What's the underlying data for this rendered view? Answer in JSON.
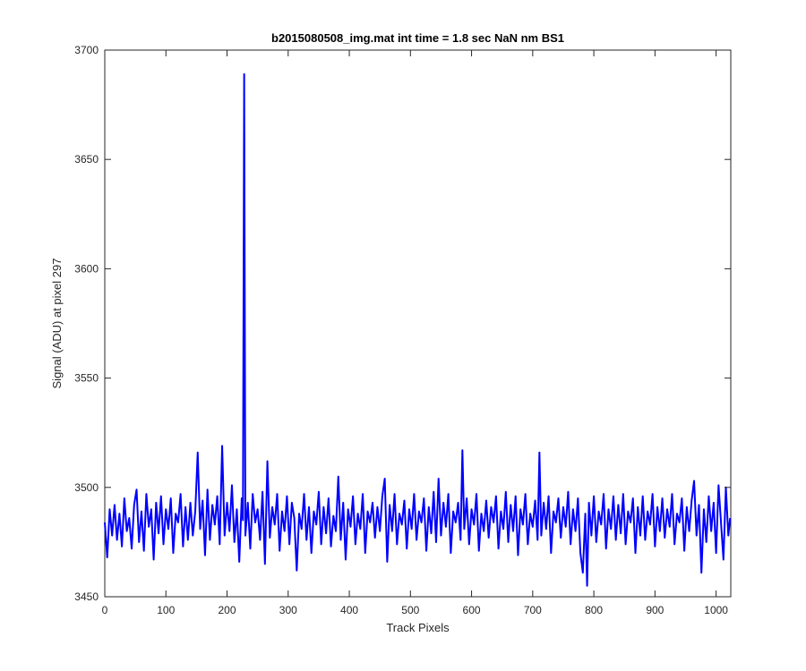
{
  "chart_data": {
    "type": "line",
    "title": "b2015080508_img.mat int time = 1.8 sec  NaN nm BS1",
    "xlabel": "Track Pixels",
    "ylabel": "Signal (ADU) at pixel 297",
    "xlim": [
      0,
      1024
    ],
    "ylim": [
      3450,
      3700
    ],
    "xticks": [
      0,
      100,
      200,
      300,
      400,
      500,
      600,
      700,
      800,
      900,
      1000
    ],
    "yticks": [
      3450,
      3500,
      3550,
      3600,
      3650,
      3700
    ],
    "grid": false,
    "legend": "none",
    "series": [
      {
        "color": "#0000ff",
        "points": [
          [
            0,
            3484
          ],
          [
            4,
            3468
          ],
          [
            8,
            3490
          ],
          [
            12,
            3478
          ],
          [
            16,
            3492
          ],
          [
            20,
            3476
          ],
          [
            24,
            3488
          ],
          [
            28,
            3473
          ],
          [
            32,
            3495
          ],
          [
            36,
            3480
          ],
          [
            40,
            3486
          ],
          [
            44,
            3472
          ],
          [
            48,
            3492
          ],
          [
            52,
            3499
          ],
          [
            56,
            3475
          ],
          [
            60,
            3489
          ],
          [
            64,
            3471
          ],
          [
            68,
            3497
          ],
          [
            72,
            3482
          ],
          [
            76,
            3490
          ],
          [
            80,
            3467
          ],
          [
            84,
            3493
          ],
          [
            88,
            3479
          ],
          [
            92,
            3496
          ],
          [
            96,
            3474
          ],
          [
            100,
            3490
          ],
          [
            104,
            3481
          ],
          [
            108,
            3495
          ],
          [
            112,
            3470
          ],
          [
            116,
            3488
          ],
          [
            120,
            3484
          ],
          [
            124,
            3497
          ],
          [
            128,
            3473
          ],
          [
            132,
            3491
          ],
          [
            136,
            3476
          ],
          [
            140,
            3493
          ],
          [
            144,
            3478
          ],
          [
            148,
            3489
          ],
          [
            152,
            3516
          ],
          [
            156,
            3481
          ],
          [
            160,
            3494
          ],
          [
            164,
            3469
          ],
          [
            168,
            3499
          ],
          [
            172,
            3476
          ],
          [
            176,
            3492
          ],
          [
            180,
            3483
          ],
          [
            184,
            3496
          ],
          [
            188,
            3474
          ],
          [
            192,
            3519
          ],
          [
            196,
            3478
          ],
          [
            200,
            3493
          ],
          [
            204,
            3480
          ],
          [
            208,
            3501
          ],
          [
            212,
            3475
          ],
          [
            216,
            3490
          ],
          [
            220,
            3466
          ],
          [
            224,
            3495
          ],
          [
            226,
            3485
          ],
          [
            228,
            3689
          ],
          [
            230,
            3478
          ],
          [
            234,
            3493
          ],
          [
            238,
            3472
          ],
          [
            242,
            3497
          ],
          [
            246,
            3484
          ],
          [
            250,
            3490
          ],
          [
            254,
            3476
          ],
          [
            258,
            3498
          ],
          [
            262,
            3465
          ],
          [
            266,
            3512
          ],
          [
            270,
            3477
          ],
          [
            274,
            3491
          ],
          [
            278,
            3483
          ],
          [
            282,
            3497
          ],
          [
            286,
            3471
          ],
          [
            290,
            3489
          ],
          [
            294,
            3480
          ],
          [
            298,
            3496
          ],
          [
            302,
            3474
          ],
          [
            306,
            3493
          ],
          [
            310,
            3486
          ],
          [
            314,
            3462
          ],
          [
            318,
            3488
          ],
          [
            322,
            3481
          ],
          [
            326,
            3497
          ],
          [
            330,
            3476
          ],
          [
            334,
            3491
          ],
          [
            338,
            3470
          ],
          [
            342,
            3489
          ],
          [
            346,
            3483
          ],
          [
            350,
            3498
          ],
          [
            354,
            3474
          ],
          [
            358,
            3491
          ],
          [
            362,
            3479
          ],
          [
            366,
            3495
          ],
          [
            370,
            3473
          ],
          [
            374,
            3487
          ],
          [
            378,
            3480
          ],
          [
            382,
            3505
          ],
          [
            386,
            3476
          ],
          [
            390,
            3493
          ],
          [
            394,
            3467
          ],
          [
            398,
            3490
          ],
          [
            402,
            3482
          ],
          [
            406,
            3496
          ],
          [
            410,
            3474
          ],
          [
            414,
            3488
          ],
          [
            418,
            3481
          ],
          [
            422,
            3497
          ],
          [
            426,
            3470
          ],
          [
            430,
            3489
          ],
          [
            434,
            3484
          ],
          [
            438,
            3493
          ],
          [
            442,
            3477
          ],
          [
            446,
            3491
          ],
          [
            450,
            3480
          ],
          [
            454,
            3496
          ],
          [
            458,
            3504
          ],
          [
            462,
            3466
          ],
          [
            466,
            3492
          ],
          [
            470,
            3480
          ],
          [
            474,
            3497
          ],
          [
            478,
            3474
          ],
          [
            482,
            3488
          ],
          [
            486,
            3483
          ],
          [
            490,
            3494
          ],
          [
            494,
            3472
          ],
          [
            498,
            3490
          ],
          [
            502,
            3481
          ],
          [
            506,
            3497
          ],
          [
            510,
            3476
          ],
          [
            514,
            3489
          ],
          [
            518,
            3484
          ],
          [
            522,
            3495
          ],
          [
            526,
            3471
          ],
          [
            530,
            3491
          ],
          [
            534,
            3479
          ],
          [
            538,
            3498
          ],
          [
            542,
            3475
          ],
          [
            546,
            3504
          ],
          [
            550,
            3478
          ],
          [
            554,
            3493
          ],
          [
            558,
            3482
          ],
          [
            562,
            3497
          ],
          [
            566,
            3470
          ],
          [
            570,
            3489
          ],
          [
            574,
            3484
          ],
          [
            578,
            3493
          ],
          [
            582,
            3476
          ],
          [
            585,
            3517
          ],
          [
            588,
            3481
          ],
          [
            592,
            3495
          ],
          [
            596,
            3474
          ],
          [
            600,
            3490
          ],
          [
            604,
            3483
          ],
          [
            608,
            3497
          ],
          [
            612,
            3471
          ],
          [
            616,
            3488
          ],
          [
            620,
            3480
          ],
          [
            624,
            3494
          ],
          [
            628,
            3477
          ],
          [
            632,
            3491
          ],
          [
            636,
            3484
          ],
          [
            640,
            3496
          ],
          [
            644,
            3472
          ],
          [
            648,
            3489
          ],
          [
            652,
            3481
          ],
          [
            656,
            3498
          ],
          [
            660,
            3475
          ],
          [
            664,
            3492
          ],
          [
            668,
            3480
          ],
          [
            672,
            3496
          ],
          [
            676,
            3469
          ],
          [
            680,
            3490
          ],
          [
            684,
            3483
          ],
          [
            688,
            3497
          ],
          [
            692,
            3474
          ],
          [
            696,
            3488
          ],
          [
            700,
            3482
          ],
          [
            704,
            3494
          ],
          [
            708,
            3476
          ],
          [
            711,
            3516
          ],
          [
            714,
            3478
          ],
          [
            718,
            3493
          ],
          [
            722,
            3481
          ],
          [
            726,
            3496
          ],
          [
            730,
            3470
          ],
          [
            734,
            3489
          ],
          [
            738,
            3484
          ],
          [
            742,
            3495
          ],
          [
            746,
            3477
          ],
          [
            750,
            3491
          ],
          [
            754,
            3482
          ],
          [
            758,
            3498
          ],
          [
            762,
            3474
          ],
          [
            766,
            3490
          ],
          [
            770,
            3480
          ],
          [
            774,
            3495
          ],
          [
            778,
            3470
          ],
          [
            782,
            3461
          ],
          [
            786,
            3488
          ],
          [
            789,
            3455
          ],
          [
            792,
            3493
          ],
          [
            796,
            3478
          ],
          [
            800,
            3496
          ],
          [
            804,
            3475
          ],
          [
            808,
            3489
          ],
          [
            812,
            3483
          ],
          [
            816,
            3497
          ],
          [
            820,
            3472
          ],
          [
            824,
            3490
          ],
          [
            828,
            3481
          ],
          [
            832,
            3496
          ],
          [
            836,
            3476
          ],
          [
            840,
            3492
          ],
          [
            844,
            3479
          ],
          [
            848,
            3497
          ],
          [
            852,
            3474
          ],
          [
            856,
            3489
          ],
          [
            860,
            3484
          ],
          [
            864,
            3495
          ],
          [
            868,
            3470
          ],
          [
            872,
            3491
          ],
          [
            876,
            3478
          ],
          [
            880,
            3496
          ],
          [
            884,
            3476
          ],
          [
            888,
            3489
          ],
          [
            892,
            3483
          ],
          [
            896,
            3497
          ],
          [
            900,
            3473
          ],
          [
            904,
            3491
          ],
          [
            908,
            3480
          ],
          [
            912,
            3495
          ],
          [
            916,
            3477
          ],
          [
            920,
            3490
          ],
          [
            924,
            3482
          ],
          [
            928,
            3497
          ],
          [
            932,
            3474
          ],
          [
            936,
            3488
          ],
          [
            940,
            3484
          ],
          [
            944,
            3495
          ],
          [
            948,
            3471
          ],
          [
            952,
            3491
          ],
          [
            956,
            3480
          ],
          [
            960,
            3494
          ],
          [
            964,
            3503
          ],
          [
            968,
            3478
          ],
          [
            972,
            3492
          ],
          [
            976,
            3461
          ],
          [
            980,
            3490
          ],
          [
            984,
            3475
          ],
          [
            988,
            3496
          ],
          [
            992,
            3480
          ],
          [
            996,
            3493
          ],
          [
            1000,
            3470
          ],
          [
            1004,
            3501
          ],
          [
            1008,
            3484
          ],
          [
            1012,
            3467
          ],
          [
            1016,
            3500
          ],
          [
            1020,
            3478
          ],
          [
            1023,
            3486
          ]
        ]
      }
    ]
  }
}
